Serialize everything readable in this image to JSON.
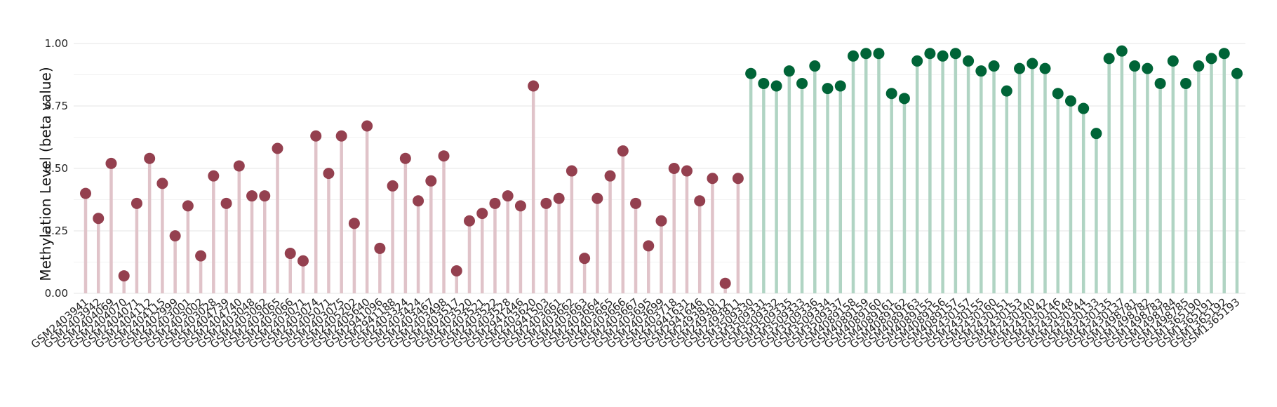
{
  "chart_data": {
    "type": "lollipop",
    "ylabel": "Methylation Level (beta value)",
    "ylim": [
      0,
      1.0
    ],
    "yticks": [
      "0.00",
      "0.25",
      "0.50",
      "0.75",
      "1.00"
    ],
    "colors": {
      "group1_point": "#94404f",
      "group1_stem": "#e0c3c9",
      "group2_point": "#006437",
      "group2_stem": "#b0d4c3"
    },
    "series": [
      {
        "values_color": "group1",
        "points": [
          [
            "GSM2403941",
            0.4
          ],
          [
            "GSM2403942",
            0.3
          ],
          [
            "GSM2404069",
            0.52
          ],
          [
            "GSM2404070",
            0.07
          ],
          [
            "GSM2404071",
            0.36
          ],
          [
            "GSM2404112",
            0.54
          ],
          [
            "GSM2404115",
            0.44
          ],
          [
            "GSM2402999",
            0.23
          ],
          [
            "GSM2403001",
            0.35
          ],
          [
            "GSM2403002",
            0.15
          ],
          [
            "GSM2403028",
            0.47
          ],
          [
            "GSM2404739",
            0.36
          ],
          [
            "GSM2404740",
            0.51
          ],
          [
            "GSM2403048",
            0.39
          ],
          [
            "GSM2403062",
            0.39
          ],
          [
            "GSM2403065",
            0.58
          ],
          [
            "GSM2403066",
            0.16
          ],
          [
            "GSM2403071",
            0.13
          ],
          [
            "GSM2403074",
            0.63
          ],
          [
            "GSM2405071",
            0.48
          ],
          [
            "GSM2403075",
            0.63
          ],
          [
            "GSM2405202",
            0.28
          ],
          [
            "GSM2405640",
            0.67
          ],
          [
            "GSM2941096",
            0.18
          ],
          [
            "GSM2941188",
            0.43
          ],
          [
            "GSM2403324",
            0.54
          ],
          [
            "GSM2403424",
            0.37
          ],
          [
            "GSM2403467",
            0.45
          ],
          [
            "GSM2403498",
            0.55
          ],
          [
            "GSM2403517",
            0.09
          ],
          [
            "GSM2403520",
            0.29
          ],
          [
            "GSM2403521",
            0.32
          ],
          [
            "GSM2403522",
            0.36
          ],
          [
            "GSM2403528",
            0.39
          ],
          [
            "GSM2941446",
            0.35
          ],
          [
            "GSM2403620",
            0.83
          ],
          [
            "GSM2941503",
            0.36
          ],
          [
            "GSM2403661",
            0.38
          ],
          [
            "GSM2403662",
            0.49
          ],
          [
            "GSM2403663",
            0.14
          ],
          [
            "GSM2403664",
            0.38
          ],
          [
            "GSM2403665",
            0.47
          ],
          [
            "GSM2403666",
            0.57
          ],
          [
            "GSM2403667",
            0.36
          ],
          [
            "GSM2403695",
            0.19
          ],
          [
            "GSM2403699",
            0.29
          ],
          [
            "GSM2403718",
            0.5
          ],
          [
            "GSM2941631",
            0.49
          ],
          [
            "GSM2941646",
            0.37
          ],
          [
            "GSM2493810",
            0.46
          ],
          [
            "GSM2493812",
            0.04
          ],
          [
            "GSM2493811",
            0.46
          ]
        ]
      },
      {
        "values_color": "group2",
        "points": [
          [
            "GSM3509330",
            0.88
          ],
          [
            "GSM3509331",
            0.84
          ],
          [
            "GSM3509332",
            0.83
          ],
          [
            "GSM3509335",
            0.89
          ],
          [
            "GSM3509333",
            0.84
          ],
          [
            "GSM3509336",
            0.91
          ],
          [
            "GSM3509334",
            0.82
          ],
          [
            "GSM3509337",
            0.83
          ],
          [
            "GSM4089158",
            0.95
          ],
          [
            "GSM4089159",
            0.96
          ],
          [
            "GSM4089160",
            0.96
          ],
          [
            "GSM4089161",
            0.8
          ],
          [
            "GSM4089162",
            0.78
          ],
          [
            "GSM4089163",
            0.93
          ],
          [
            "GSM4089155",
            0.96
          ],
          [
            "GSM4089156",
            0.95
          ],
          [
            "GSM4089157",
            0.96
          ],
          [
            "GSM2430157",
            0.93
          ],
          [
            "GSM2430155",
            0.89
          ],
          [
            "GSM2430160",
            0.91
          ],
          [
            "GSM2430151",
            0.81
          ],
          [
            "GSM2430153",
            0.9
          ],
          [
            "GSM2430140",
            0.92
          ],
          [
            "GSM2430142",
            0.9
          ],
          [
            "GSM2430146",
            0.8
          ],
          [
            "GSM2430148",
            0.77
          ],
          [
            "GSM2430144",
            0.74
          ],
          [
            "GSM2430133",
            0.64
          ],
          [
            "GSM2430135",
            0.94
          ],
          [
            "GSM2430137",
            0.97
          ],
          [
            "GSM1498781",
            0.91
          ],
          [
            "GSM1498782",
            0.9
          ],
          [
            "GSM1498783",
            0.84
          ],
          [
            "GSM1498784",
            0.93
          ],
          [
            "GSM1498785",
            0.84
          ],
          [
            "GSM1365190",
            0.91
          ],
          [
            "GSM1365191",
            0.94
          ],
          [
            "GSM1365192",
            0.96
          ],
          [
            "GSM1365193",
            0.88
          ]
        ]
      }
    ]
  }
}
